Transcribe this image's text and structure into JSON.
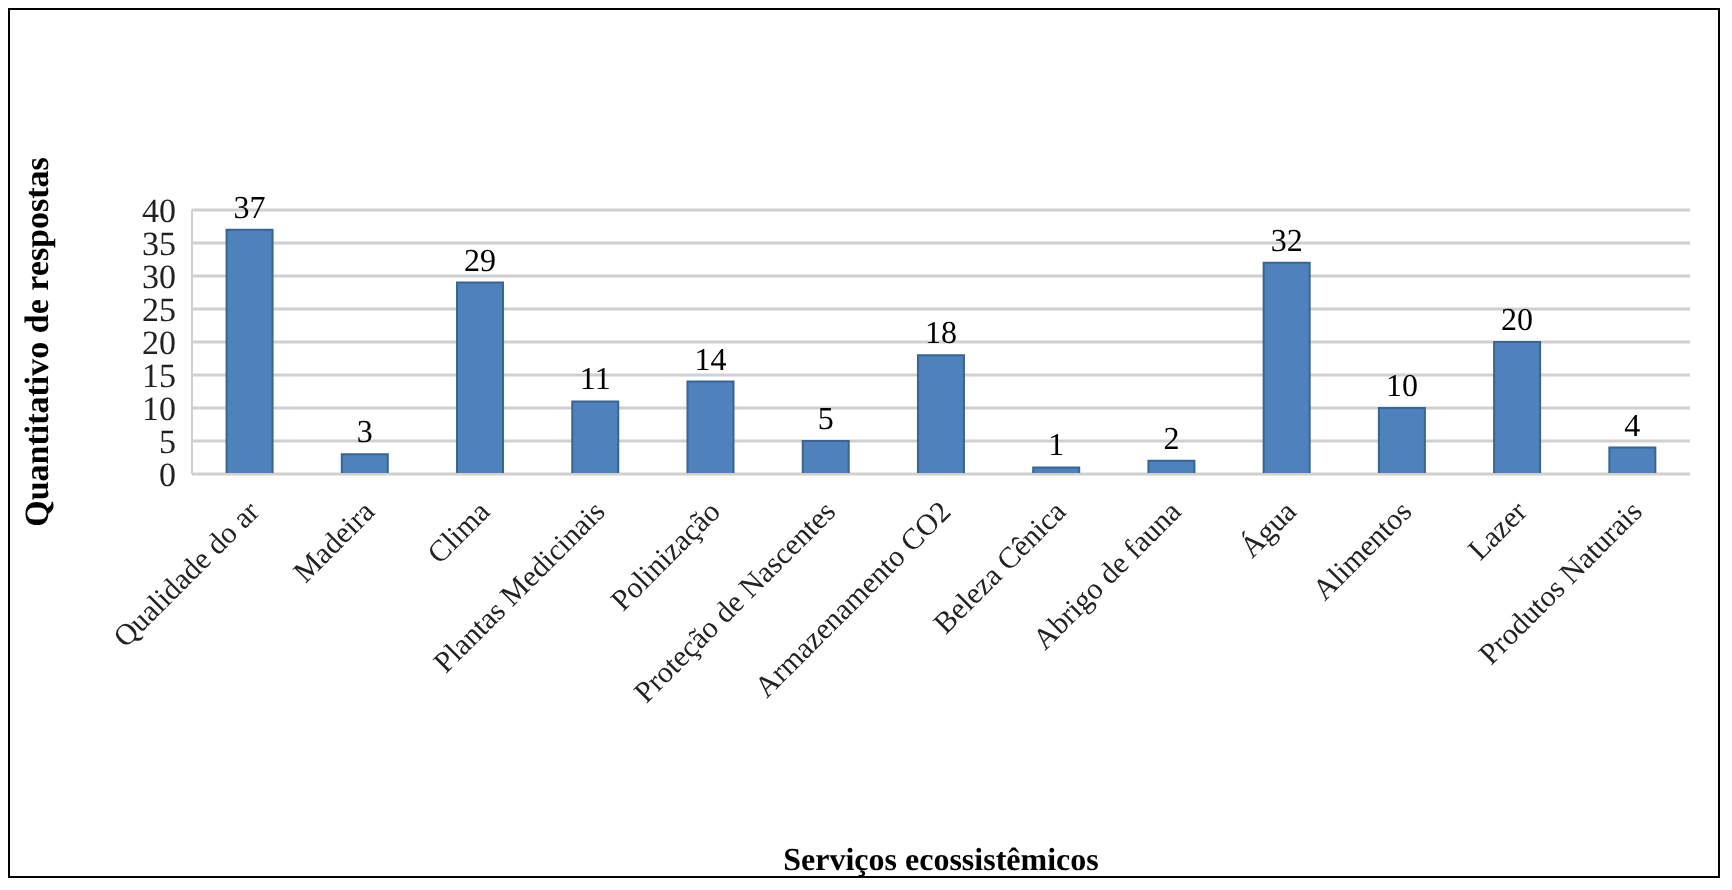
{
  "chart_data": {
    "type": "bar",
    "xlabel": "Serviços ecossistêmicos",
    "ylabel": "Quantitativo de respostas",
    "categories": [
      "Qualidade do ar",
      "Madeira",
      "Clima",
      "Plantas Medicinais",
      "Polinização",
      "Proteção de Nascentes",
      "Armazenamento CO2",
      "Beleza Cênica",
      "Abrigo de fauna",
      "Água",
      "Alimentos",
      "Lazer",
      "Produtos Naturais"
    ],
    "values": [
      37,
      3,
      29,
      11,
      14,
      5,
      18,
      1,
      2,
      32,
      10,
      20,
      4
    ],
    "color": "#4f81bd",
    "ylim": [
      0,
      40
    ],
    "yticks": [
      0,
      5,
      10,
      15,
      20,
      25,
      30,
      35,
      40
    ],
    "grid": "y",
    "data_labels": true
  }
}
